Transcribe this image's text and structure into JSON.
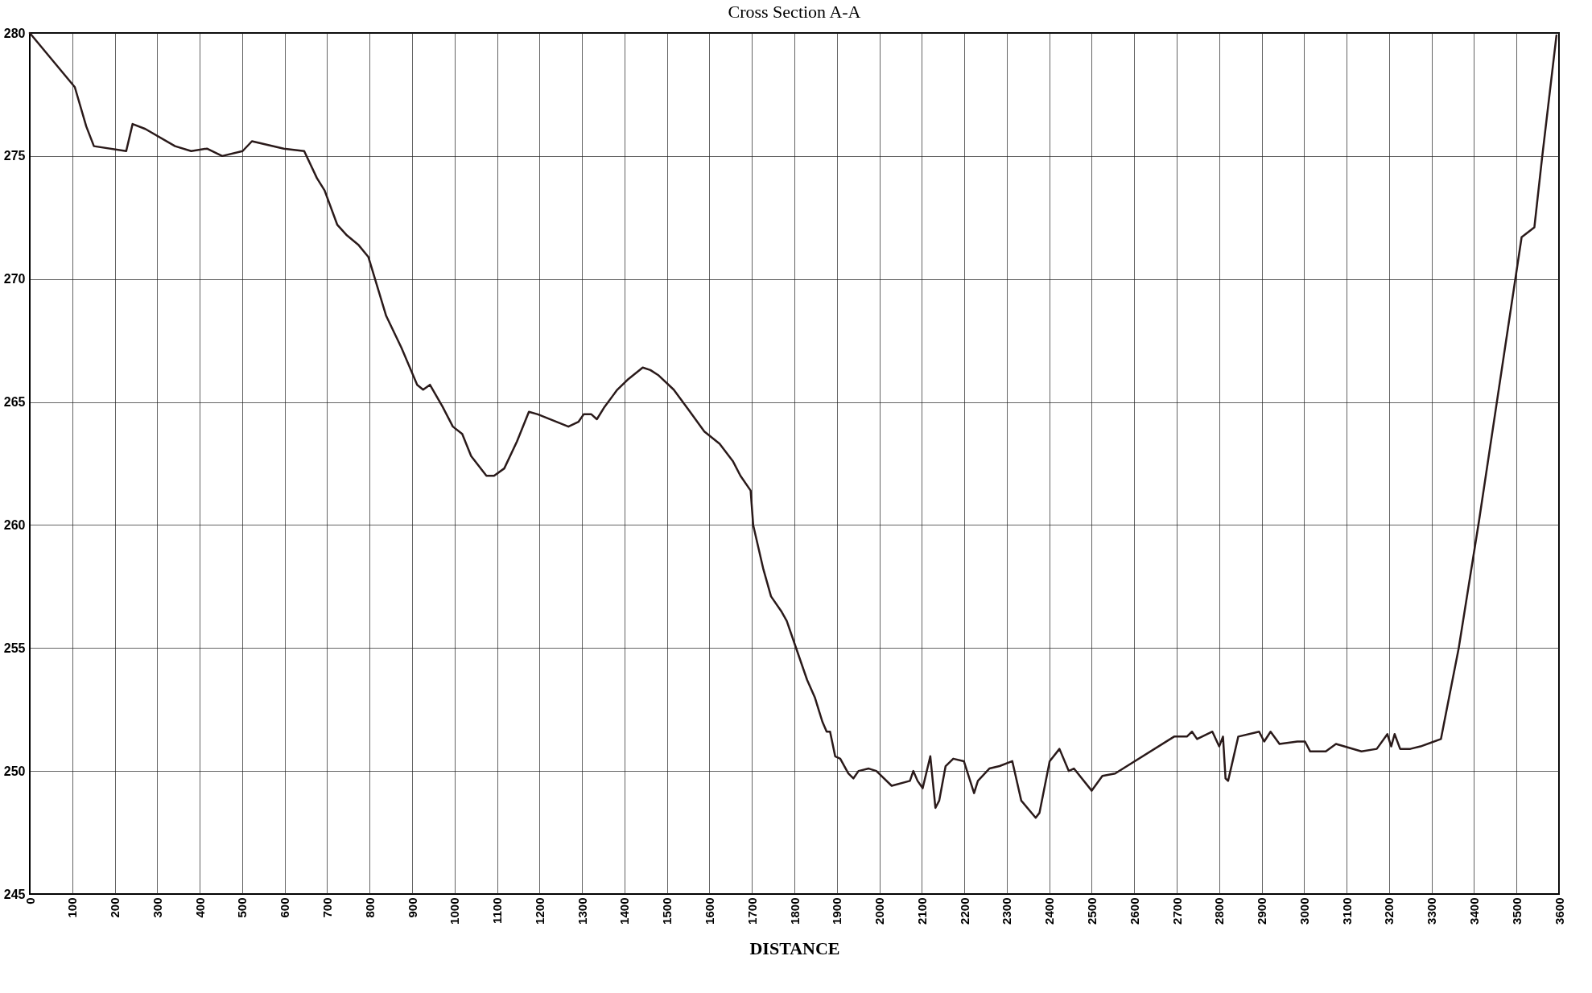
{
  "chart_data": {
    "type": "line",
    "title": "Cross Section A-A",
    "xlabel": "DISTANCE",
    "x": [
      0,
      106,
      133,
      151,
      227,
      242,
      272,
      342,
      380,
      417,
      453,
      501,
      523,
      598,
      646,
      676,
      694,
      724,
      745,
      773,
      797,
      839,
      875,
      912,
      926,
      942,
      972,
      996,
      1018,
      1039,
      1075,
      1093,
      1117,
      1147,
      1175,
      1196,
      1268,
      1292,
      1304,
      1322,
      1335,
      1353,
      1383,
      1407,
      1443,
      1461,
      1479,
      1516,
      1546,
      1588,
      1624,
      1655,
      1673,
      1697,
      1703,
      1727,
      1745,
      1769,
      1782,
      1802,
      1830,
      1848,
      1866,
      1876,
      1884,
      1896,
      1908,
      1927,
      1939,
      1951,
      1975,
      1993,
      2029,
      2072,
      2080,
      2090,
      2102,
      2120,
      2132,
      2141,
      2156,
      2174,
      2199,
      2223,
      2232,
      2259,
      2283,
      2313,
      2334,
      2368,
      2377,
      2401,
      2424,
      2446,
      2458,
      2500,
      2525,
      2555,
      2694,
      2724,
      2736,
      2748,
      2784,
      2800,
      2809,
      2815,
      2821,
      2833,
      2845,
      2894,
      2906,
      2921,
      2942,
      2984,
      3002,
      3014,
      3051,
      3075,
      3135,
      3171,
      3196,
      3205,
      3213,
      3226,
      3250,
      3274,
      3322,
      3364,
      3412,
      3512,
      3542,
      3560,
      3594
    ],
    "series": [
      {
        "color": "#2a1a1a",
        "values": [
          280,
          277.8,
          276.2,
          275.4,
          275.2,
          276.3,
          276.1,
          275.4,
          275.2,
          275.3,
          275.0,
          275.2,
          275.6,
          275.3,
          275.2,
          274.1,
          273.6,
          272.2,
          271.8,
          271.4,
          270.9,
          268.5,
          267.2,
          265.7,
          265.5,
          265.7,
          264.8,
          264.0,
          263.7,
          262.8,
          262.0,
          262.0,
          262.3,
          263.4,
          264.6,
          264.5,
          264.0,
          264.2,
          264.5,
          264.5,
          264.3,
          264.8,
          265.5,
          265.9,
          266.4,
          266.3,
          266.1,
          265.5,
          264.8,
          263.8,
          263.3,
          262.6,
          262.0,
          261.4,
          260.0,
          258.2,
          257.1,
          256.5,
          256.1,
          255.1,
          253.7,
          253.0,
          252.0,
          251.6,
          251.6,
          250.6,
          250.5,
          249.9,
          249.7,
          250.0,
          250.1,
          250.0,
          249.4,
          249.6,
          250.0,
          249.6,
          249.3,
          250.6,
          248.5,
          248.8,
          250.2,
          250.5,
          250.4,
          249.1,
          249.6,
          250.1,
          250.2,
          250.4,
          248.8,
          248.1,
          248.3,
          250.4,
          250.9,
          250.0,
          250.1,
          249.2,
          249.8,
          249.9,
          251.4,
          251.4,
          251.6,
          251.3,
          251.6,
          251.0,
          251.4,
          249.7,
          249.6,
          250.5,
          251.4,
          251.6,
          251.2,
          251.6,
          251.1,
          251.2,
          251.2,
          250.8,
          250.8,
          251.1,
          250.8,
          250.9,
          251.5,
          251.0,
          251.5,
          250.9,
          250.9,
          251.0,
          251.3,
          255.0,
          260.2,
          271.7,
          272.1,
          274.9,
          279.9
        ]
      }
    ],
    "xlim": [
      0,
      3600
    ],
    "xticks": [
      0,
      100,
      200,
      300,
      400,
      500,
      600,
      700,
      800,
      900,
      1000,
      1100,
      1200,
      1300,
      1400,
      1500,
      1600,
      1700,
      1800,
      1900,
      2000,
      2100,
      2200,
      2300,
      2400,
      2500,
      2600,
      2700,
      2800,
      2900,
      3000,
      3100,
      3200,
      3300,
      3400,
      3500,
      3600
    ],
    "ylim": [
      245,
      280
    ],
    "yticks": [
      245,
      250,
      255,
      260,
      265,
      270,
      275,
      280
    ],
    "grid": true
  }
}
